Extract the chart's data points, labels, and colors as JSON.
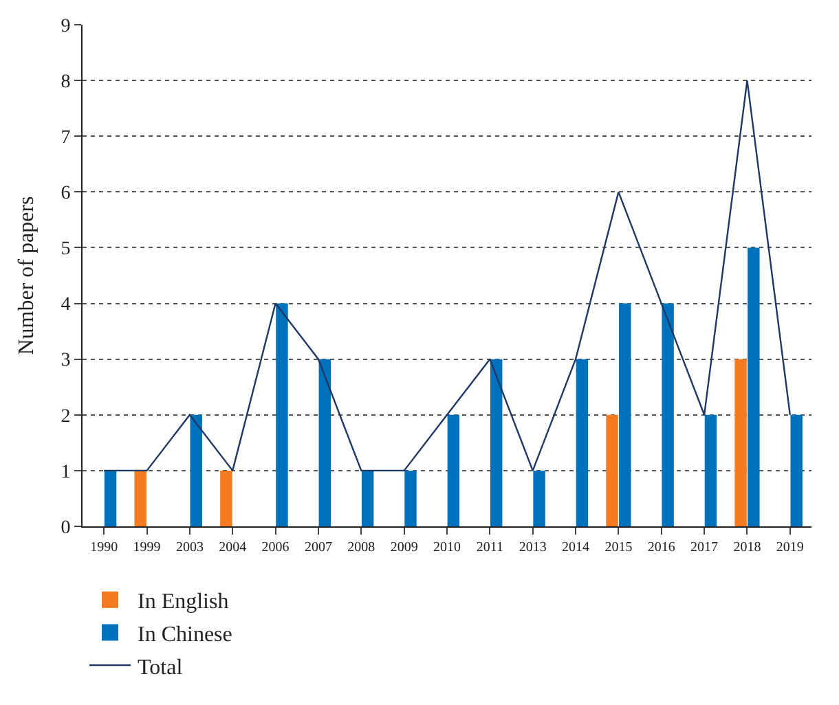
{
  "chart_data": {
    "type": "bar",
    "ylabel": "Number of papers",
    "categories": [
      "1990",
      "1999",
      "2003",
      "2004",
      "2006",
      "2007",
      "2008",
      "2009",
      "2010",
      "2011",
      "2013",
      "2014",
      "2015",
      "2016",
      "2017",
      "2018",
      "2019"
    ],
    "series": [
      {
        "name": "In English",
        "color": "#f47b20",
        "values": [
          null,
          1,
          null,
          1,
          null,
          null,
          null,
          null,
          null,
          null,
          null,
          null,
          2,
          null,
          null,
          3,
          null
        ]
      },
      {
        "name": "In Chinese",
        "color": "#0072bc",
        "values": [
          1,
          null,
          2,
          null,
          4,
          3,
          1,
          1,
          2,
          3,
          1,
          3,
          4,
          4,
          2,
          5,
          2
        ]
      },
      {
        "name": "Total",
        "type": "line",
        "color": "#1f3864",
        "marker": "none",
        "values": [
          1,
          1,
          2,
          1,
          4,
          3,
          1,
          1,
          2,
          3,
          1,
          3,
          6,
          4,
          2,
          8,
          2
        ]
      }
    ],
    "ylim": [
      0,
      9
    ],
    "yticks": [
      0,
      1,
      2,
      3,
      4,
      5,
      6,
      7,
      8,
      9
    ],
    "grid": "y",
    "legend": "bottom left"
  }
}
